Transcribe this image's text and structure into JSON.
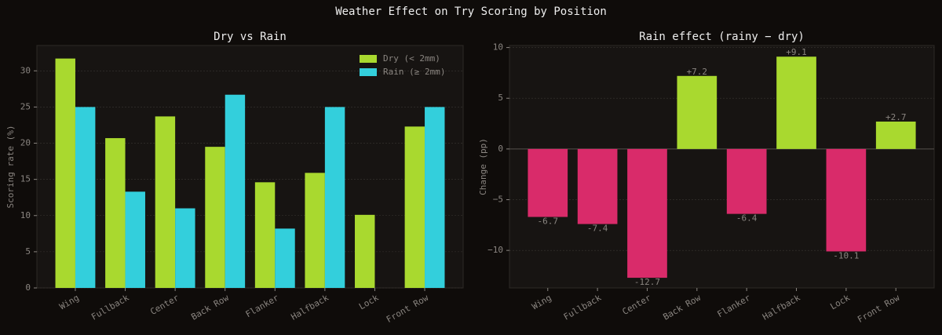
{
  "title": "Weather Effect on Try Scoring by Position",
  "chart_data": [
    {
      "type": "bar",
      "title": "Dry vs Rain",
      "ylabel": "Scoring rate (%)",
      "categories": [
        "Wing",
        "Fullback",
        "Center",
        "Back Row",
        "Flanker",
        "Halfback",
        "Lock",
        "Front Row"
      ],
      "series": [
        {
          "name": "Dry (< 2mm)",
          "color": "#a9d92f",
          "values": [
            31.7,
            20.7,
            23.7,
            19.5,
            14.6,
            15.9,
            10.1,
            22.3
          ]
        },
        {
          "name": "Rain (≥ 2mm)",
          "color": "#33cfdc",
          "values": [
            25.0,
            13.3,
            11.0,
            26.7,
            8.2,
            25.0,
            0,
            25.0
          ]
        }
      ],
      "ylim": [
        0,
        33.5
      ],
      "yticks": [
        0,
        5,
        10,
        15,
        20,
        25,
        30
      ],
      "grid": true,
      "legend": "upper right"
    },
    {
      "type": "bar",
      "title": "Rain effect (rainy − dry)",
      "ylabel": "Change (pp)",
      "categories": [
        "Wing",
        "Fullback",
        "Center",
        "Back Row",
        "Flanker",
        "Halfback",
        "Lock",
        "Front Row"
      ],
      "values": [
        -6.7,
        -7.4,
        -12.7,
        7.2,
        -6.4,
        9.1,
        -10.1,
        2.7
      ],
      "value_labels": [
        "-6.7",
        "-7.4",
        "-12.7",
        "+7.2",
        "-6.4",
        "+9.1",
        "-10.1",
        "+2.7"
      ],
      "positive_color": "#a9d92f",
      "negative_color": "#d92b6a",
      "ylim": [
        -13.7,
        10.2
      ],
      "yticks": [
        {
          "value": -10,
          "label": "−10"
        },
        {
          "value": -5,
          "label": "−5"
        },
        0,
        5,
        10
      ],
      "grid": true
    }
  ]
}
